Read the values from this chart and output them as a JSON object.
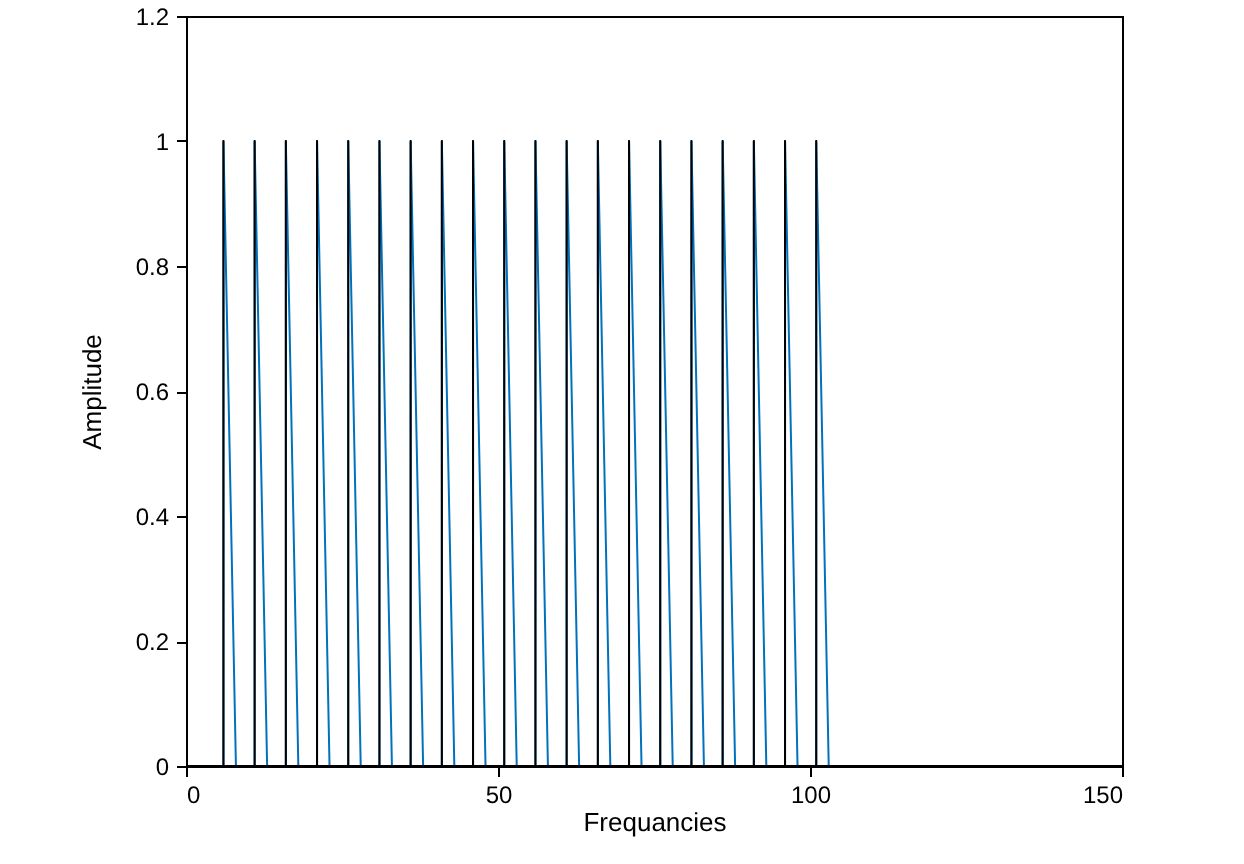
{
  "chart_data": {
    "type": "line",
    "xlabel": "Frequancies",
    "ylabel": "Amplitude",
    "xlim": [
      0,
      150
    ],
    "xticks": [
      0,
      50,
      100,
      150
    ],
    "ylim": [
      0,
      1.2
    ],
    "yticks": [
      0,
      0.2,
      0.4,
      0.6,
      0.8,
      1,
      1.2
    ],
    "grid": false,
    "marker": "none",
    "line_style": "solid",
    "series": [
      {
        "color": "#0072bd",
        "x": [
          0,
          6,
          6,
          8,
          11,
          11,
          13,
          16,
          16,
          18,
          21,
          21,
          23,
          26,
          26,
          28,
          31,
          31,
          33,
          36,
          36,
          38,
          41,
          41,
          43,
          46,
          46,
          48,
          51,
          51,
          53,
          56,
          56,
          58,
          61,
          61,
          63,
          66,
          66,
          68,
          71,
          71,
          73,
          76,
          76,
          78,
          81,
          81,
          83,
          86,
          86,
          88,
          91,
          91,
          93,
          96,
          96,
          98,
          101,
          101,
          103,
          150
        ],
        "values": [
          0,
          0,
          1,
          0,
          0,
          1,
          0,
          0,
          1,
          0,
          0,
          1,
          0,
          0,
          1,
          0,
          0,
          1,
          0,
          0,
          1,
          0,
          0,
          1,
          0,
          0,
          1,
          0,
          0,
          1,
          0,
          0,
          1,
          0,
          0,
          1,
          0,
          0,
          1,
          0,
          0,
          1,
          0,
          0,
          1,
          0,
          0,
          1,
          0,
          0,
          1,
          0,
          0,
          1,
          0,
          0,
          1,
          0,
          0,
          1,
          0,
          0
        ]
      },
      {
        "color": "#000000",
        "x": [
          0,
          6,
          6,
          6,
          11,
          11,
          11,
          16,
          16,
          16,
          21,
          21,
          21,
          26,
          26,
          26,
          31,
          31,
          31,
          36,
          36,
          36,
          41,
          41,
          41,
          46,
          46,
          46,
          51,
          51,
          51,
          56,
          56,
          56,
          61,
          61,
          61,
          66,
          66,
          66,
          71,
          71,
          71,
          76,
          76,
          76,
          81,
          81,
          81,
          86,
          86,
          86,
          91,
          91,
          91,
          96,
          96,
          96,
          101,
          101,
          101,
          150
        ],
        "values": [
          0,
          0,
          1,
          0,
          0,
          1,
          0,
          0,
          1,
          0,
          0,
          1,
          0,
          0,
          1,
          0,
          0,
          1,
          0,
          0,
          1,
          0,
          0,
          1,
          0,
          0,
          1,
          0,
          0,
          1,
          0,
          0,
          1,
          0,
          0,
          1,
          0,
          0,
          1,
          0,
          0,
          1,
          0,
          0,
          1,
          0,
          0,
          1,
          0,
          0,
          1,
          0,
          0,
          1,
          0,
          0,
          1,
          0,
          0,
          1,
          0,
          0
        ]
      }
    ]
  }
}
